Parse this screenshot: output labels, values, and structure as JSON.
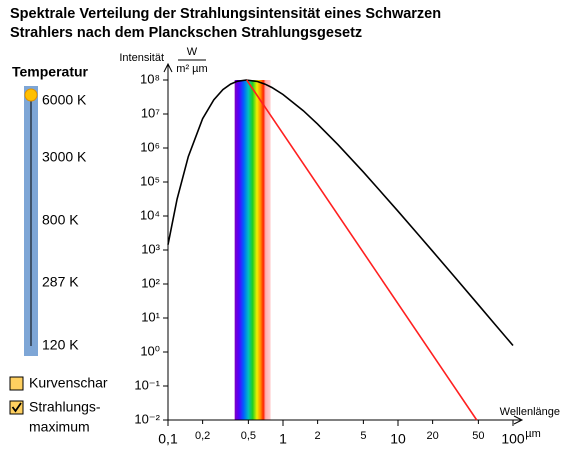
{
  "title_lines": [
    "Spektrale Verteilung der Strahlungsintensität eines Schwarzen",
    "Strahlers nach dem Planckschen Strahlungsgesetz"
  ],
  "controls": {
    "slider_title": "Temperatur",
    "slider_labels": [
      "6000 K",
      "3000 K",
      "800 K",
      "287 K",
      "120 K"
    ],
    "checkboxes": [
      {
        "label": "Kurvenschar",
        "checked": false
      },
      {
        "label_lines": [
          "Strahlungs-",
          "maximum"
        ],
        "checked": true
      }
    ]
  },
  "chart_data": {
    "type": "line",
    "log_x": true,
    "log_y": true,
    "y_label": "Intensität",
    "y_unit_top": "W",
    "y_unit_bottom": "m² µm",
    "x_label": "Wellenlänge",
    "x_unit": "µm",
    "band": [
      0.38,
      0.78
    ],
    "xlim": [
      0.1,
      100
    ],
    "ylim": [
      0.01,
      100000000
    ],
    "xticks": [
      {
        "value": 0.1,
        "label": "0,1"
      },
      {
        "value": 0.2,
        "label": "0,2"
      },
      {
        "value": 0.5,
        "label": "0,5"
      },
      1,
      2,
      5,
      10,
      20,
      50,
      100
    ],
    "yticks": [
      {
        "value": 0.01,
        "label": "10⁻²"
      },
      {
        "value": 0.1,
        "label": "10⁻¹"
      },
      {
        "value": 1,
        "label": "10⁰"
      },
      {
        "value": 10,
        "label": "10¹"
      },
      {
        "value": 100,
        "label": "10²"
      },
      {
        "value": 1000,
        "label": "10³"
      },
      {
        "value": 10000,
        "label": "10⁴"
      },
      {
        "value": 100000,
        "label": "10⁵"
      },
      {
        "value": 1000000,
        "label": "10⁶"
      },
      {
        "value": 10000000,
        "label": "10⁷"
      },
      {
        "value": 100000000,
        "label": "10⁸"
      }
    ],
    "series": [
      {
        "color": "#000000",
        "x": [
          0.1,
          0.12,
          0.15,
          0.2,
          0.25,
          0.3,
          0.35,
          0.4,
          0.48,
          0.6,
          0.7,
          0.8,
          1,
          1.5,
          2,
          3,
          5,
          7,
          10,
          15,
          20,
          30,
          50,
          70,
          100
        ],
        "values": [
          1430,
          31600,
          560000,
          7270000,
          26200000,
          52200000,
          75500000,
          91300000,
          100000000,
          90200000,
          75000000,
          60000000,
          37500000,
          12500000,
          5050000,
          1260000,
          195000,
          54500,
          13800,
          2840,
          919,
          185,
          24.4,
          6.39,
          1.55
        ]
      },
      {
        "color": "#ff2020",
        "x": [
          0.483,
          48.3
        ],
        "values": [
          100000000,
          0.01
        ]
      }
    ]
  }
}
